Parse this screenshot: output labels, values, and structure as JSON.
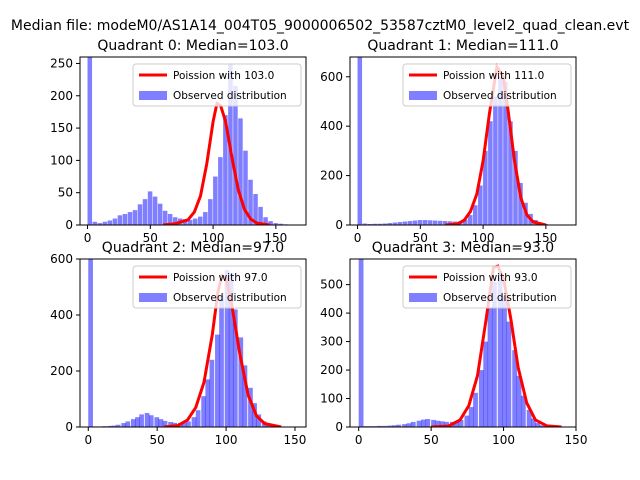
{
  "figure": {
    "suptitle": "Median file: modeM0/AS1A14_004T05_9000006502_53587cztM0_level2_quad_clean.evt"
  },
  "colors": {
    "observed": "#0000ff",
    "poisson": "#ff0000"
  },
  "chart_data": [
    {
      "type": "bar",
      "title": "Quadrant 0: Median=103.0",
      "median": 103.0,
      "xlim": [
        -6,
        174
      ],
      "ylim": [
        0,
        260
      ],
      "xticks": [
        0,
        50,
        100,
        150
      ],
      "yticks": [
        0,
        50,
        100,
        150,
        200,
        250
      ],
      "bin_width": 3.6,
      "legend": [
        "Poission with 103.0",
        "Observed distribution"
      ],
      "legend_loc": "upper-right",
      "observed": [
        [
          0,
          260
        ],
        [
          4,
          5
        ],
        [
          8,
          3
        ],
        [
          12,
          5
        ],
        [
          16,
          7
        ],
        [
          20,
          10
        ],
        [
          24,
          15
        ],
        [
          28,
          17
        ],
        [
          32,
          20
        ],
        [
          36,
          23
        ],
        [
          40,
          32
        ],
        [
          44,
          40
        ],
        [
          48,
          52
        ],
        [
          52,
          44
        ],
        [
          56,
          33
        ],
        [
          60,
          22
        ],
        [
          64,
          17
        ],
        [
          68,
          12
        ],
        [
          72,
          10
        ],
        [
          76,
          9
        ],
        [
          80,
          8
        ],
        [
          84,
          10
        ],
        [
          88,
          13
        ],
        [
          92,
          20
        ],
        [
          96,
          40
        ],
        [
          100,
          75
        ],
        [
          104,
          105
        ],
        [
          108,
          170
        ],
        [
          112,
          250
        ],
        [
          116,
          215
        ],
        [
          120,
          165
        ],
        [
          124,
          115
        ],
        [
          128,
          70
        ],
        [
          132,
          48
        ],
        [
          136,
          28
        ],
        [
          140,
          12
        ],
        [
          144,
          6
        ],
        [
          148,
          3
        ],
        [
          152,
          2
        ],
        [
          156,
          1
        ]
      ],
      "poisson": [
        [
          60,
          0
        ],
        [
          70,
          2
        ],
        [
          80,
          8
        ],
        [
          85,
          20
        ],
        [
          90,
          45
        ],
        [
          95,
          95
        ],
        [
          100,
          160
        ],
        [
          103,
          188
        ],
        [
          106,
          185
        ],
        [
          110,
          160
        ],
        [
          115,
          105
        ],
        [
          120,
          55
        ],
        [
          125,
          24
        ],
        [
          130,
          9
        ],
        [
          135,
          3
        ],
        [
          145,
          0
        ]
      ]
    },
    {
      "type": "bar",
      "title": "Quadrant 1: Median=111.0",
      "median": 111.0,
      "xlim": [
        -6,
        174
      ],
      "ylim": [
        0,
        680
      ],
      "xticks": [
        0,
        50,
        100,
        150
      ],
      "yticks": [
        0,
        200,
        400,
        600
      ],
      "bin_width": 3.6,
      "legend": [
        "Poission with 111.0",
        "Observed distribution"
      ],
      "legend_loc": "upper-right",
      "observed": [
        [
          0,
          680
        ],
        [
          4,
          6
        ],
        [
          8,
          4
        ],
        [
          12,
          5
        ],
        [
          16,
          5
        ],
        [
          20,
          6
        ],
        [
          24,
          8
        ],
        [
          28,
          10
        ],
        [
          32,
          12
        ],
        [
          36,
          14
        ],
        [
          40,
          16
        ],
        [
          44,
          18
        ],
        [
          48,
          20
        ],
        [
          52,
          20
        ],
        [
          56,
          19
        ],
        [
          60,
          18
        ],
        [
          64,
          17
        ],
        [
          68,
          16
        ],
        [
          72,
          15
        ],
        [
          76,
          14
        ],
        [
          80,
          15
        ],
        [
          84,
          22
        ],
        [
          88,
          40
        ],
        [
          92,
          80
        ],
        [
          96,
          160
        ],
        [
          100,
          300
        ],
        [
          104,
          420
        ],
        [
          108,
          520
        ],
        [
          112,
          600
        ],
        [
          116,
          580
        ],
        [
          120,
          420
        ],
        [
          124,
          300
        ],
        [
          128,
          170
        ],
        [
          132,
          90
        ],
        [
          136,
          45
        ],
        [
          140,
          20
        ],
        [
          144,
          8
        ],
        [
          148,
          4
        ],
        [
          152,
          2
        ],
        [
          156,
          1
        ]
      ],
      "poisson": [
        [
          70,
          0
        ],
        [
          80,
          5
        ],
        [
          85,
          20
        ],
        [
          90,
          55
        ],
        [
          95,
          125
        ],
        [
          100,
          260
        ],
        [
          105,
          450
        ],
        [
          111,
          640
        ],
        [
          116,
          600
        ],
        [
          120,
          460
        ],
        [
          125,
          260
        ],
        [
          130,
          110
        ],
        [
          135,
          40
        ],
        [
          140,
          12
        ],
        [
          150,
          0
        ]
      ]
    },
    {
      "type": "bar",
      "title": "Quadrant 2: Median=97.0",
      "median": 97.0,
      "xlim": [
        -6,
        158
      ],
      "ylim": [
        0,
        600
      ],
      "xticks": [
        0,
        50,
        100,
        150
      ],
      "yticks": [
        0,
        200,
        400,
        600
      ],
      "bin_width": 3.4,
      "legend": [
        "Poission with 97.0",
        "Observed distribution"
      ],
      "legend_loc": "upper-right",
      "observed": [
        [
          0,
          600
        ],
        [
          3.4,
          2
        ],
        [
          6.8,
          2
        ],
        [
          10,
          3
        ],
        [
          14,
          4
        ],
        [
          17,
          5
        ],
        [
          20,
          8
        ],
        [
          24,
          14
        ],
        [
          27,
          20
        ],
        [
          31,
          28
        ],
        [
          34,
          35
        ],
        [
          37,
          45
        ],
        [
          41,
          50
        ],
        [
          44,
          42
        ],
        [
          48,
          35
        ],
        [
          51,
          28
        ],
        [
          54,
          22
        ],
        [
          58,
          18
        ],
        [
          61,
          15
        ],
        [
          65,
          14
        ],
        [
          68,
          15
        ],
        [
          71,
          20
        ],
        [
          75,
          35
        ],
        [
          78,
          60
        ],
        [
          82,
          110
        ],
        [
          85,
          170
        ],
        [
          88,
          240
        ],
        [
          92,
          330
        ],
        [
          95,
          470
        ],
        [
          99,
          560
        ],
        [
          102,
          550
        ],
        [
          105,
          420
        ],
        [
          109,
          320
        ],
        [
          112,
          220
        ],
        [
          116,
          140
        ],
        [
          119,
          85
        ],
        [
          122,
          45
        ],
        [
          126,
          20
        ],
        [
          129,
          10
        ],
        [
          133,
          5
        ],
        [
          136,
          2
        ],
        [
          139,
          1
        ]
      ],
      "poisson": [
        [
          55,
          0
        ],
        [
          65,
          5
        ],
        [
          72,
          25
        ],
        [
          78,
          70
        ],
        [
          84,
          160
        ],
        [
          90,
          330
        ],
        [
          94,
          480
        ],
        [
          97,
          540
        ],
        [
          100,
          530
        ],
        [
          104,
          440
        ],
        [
          110,
          260
        ],
        [
          116,
          115
        ],
        [
          122,
          40
        ],
        [
          128,
          12
        ],
        [
          140,
          0
        ]
      ]
    },
    {
      "type": "bar",
      "title": "Quadrant 3: Median=93.0",
      "median": 93.0,
      "xlim": [
        -6,
        150
      ],
      "ylim": [
        0,
        590
      ],
      "xticks": [
        0,
        50,
        100,
        150
      ],
      "yticks": [
        0,
        100,
        200,
        300,
        400,
        500
      ],
      "bin_width": 3.3,
      "legend": [
        "Poission with 93.0",
        "Observed distribution"
      ],
      "legend_loc": "upper-right",
      "observed": [
        [
          0,
          590
        ],
        [
          3.3,
          3
        ],
        [
          6.6,
          3
        ],
        [
          10,
          3
        ],
        [
          13,
          4
        ],
        [
          16.5,
          4
        ],
        [
          20,
          5
        ],
        [
          23,
          6
        ],
        [
          26,
          8
        ],
        [
          30,
          10
        ],
        [
          33,
          13
        ],
        [
          36,
          18
        ],
        [
          40,
          22
        ],
        [
          43,
          26
        ],
        [
          46,
          28
        ],
        [
          50,
          25
        ],
        [
          53,
          22
        ],
        [
          56,
          20
        ],
        [
          59,
          18
        ],
        [
          63,
          18
        ],
        [
          66,
          20
        ],
        [
          69,
          25
        ],
        [
          73,
          40
        ],
        [
          76,
          70
        ],
        [
          79,
          120
        ],
        [
          83,
          200
        ],
        [
          86,
          300
        ],
        [
          89,
          420
        ],
        [
          92,
          510
        ],
        [
          96,
          540
        ],
        [
          99,
          460
        ],
        [
          102,
          370
        ],
        [
          106,
          270
        ],
        [
          109,
          180
        ],
        [
          112,
          110
        ],
        [
          116,
          60
        ],
        [
          119,
          30
        ],
        [
          122,
          14
        ],
        [
          125,
          6
        ],
        [
          129,
          3
        ],
        [
          132,
          2
        ],
        [
          135,
          1
        ]
      ],
      "poisson": [
        [
          50,
          0
        ],
        [
          62,
          3
        ],
        [
          70,
          25
        ],
        [
          76,
          75
        ],
        [
          82,
          180
        ],
        [
          88,
          380
        ],
        [
          93,
          560
        ],
        [
          96,
          565
        ],
        [
          100,
          520
        ],
        [
          105,
          380
        ],
        [
          110,
          210
        ],
        [
          116,
          85
        ],
        [
          122,
          25
        ],
        [
          130,
          4
        ],
        [
          140,
          0
        ]
      ]
    }
  ]
}
